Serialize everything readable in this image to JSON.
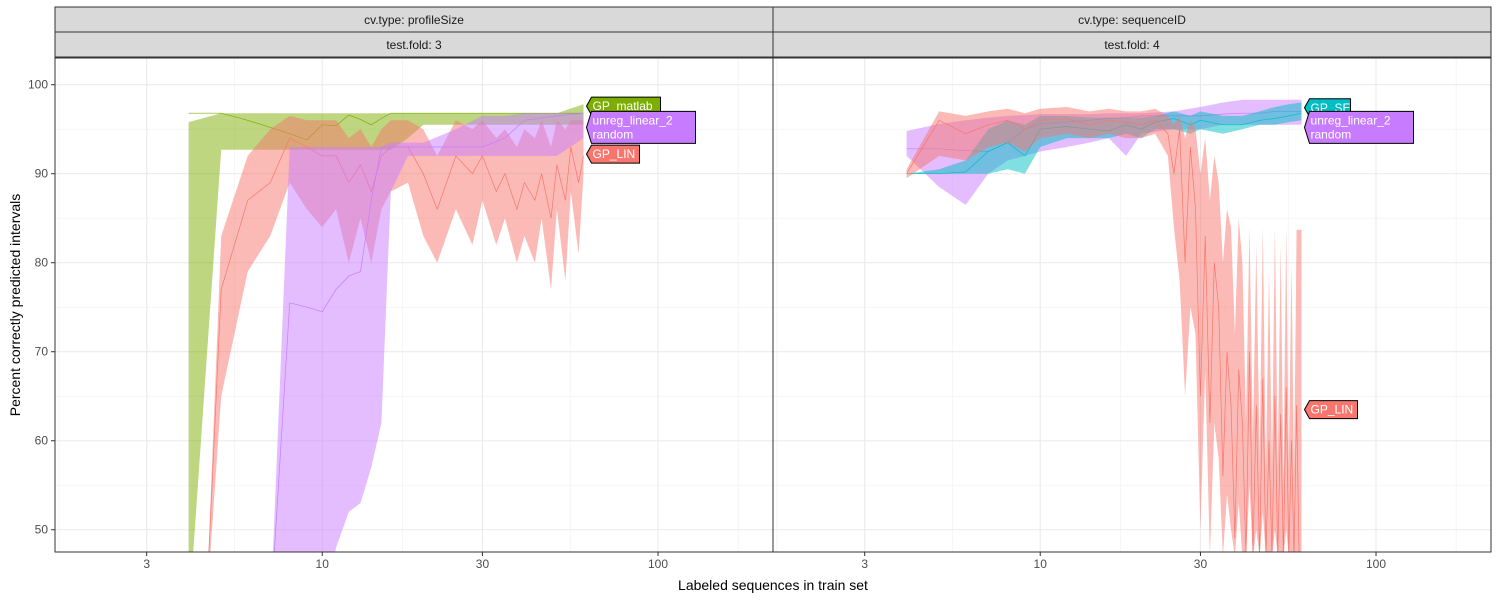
{
  "chart_data": {
    "type": "area",
    "xlabel": "Labeled sequences in train set",
    "ylabel": "Percent correctly predicted intervals",
    "x_scale": "log10",
    "xlim": [
      1.6,
      220
    ],
    "ylim": [
      47.5,
      103
    ],
    "x_ticks": [
      3,
      10,
      30,
      100
    ],
    "y_ticks": [
      50,
      60,
      70,
      80,
      90,
      100
    ],
    "grid": true,
    "legend": "none (direct labels)",
    "colors": {
      "GP_LIN": "#F8766D",
      "GP_matlab": "#7CAE00",
      "GP_SE": "#00BFC4",
      "unreg_linear_2": "#C77CFF",
      "random": "#C77CFF"
    },
    "panels": [
      {
        "strip_top": "cv.type: profileSize",
        "strip_bottom": "test.fold: 3",
        "series": [
          {
            "name": "GP_matlab",
            "color": "#7CAE00",
            "x": [
              4,
              5,
              6,
              7,
              8,
              9,
              10,
              11,
              12,
              13,
              14,
              15,
              16,
              18,
              20,
              25,
              30,
              35,
              40,
              50,
              60
            ],
            "mean": [
              96.8,
              96.8,
              96.0,
              95.2,
              94.5,
              93.8,
              95.5,
              95.4,
              96.6,
              96.1,
              95.5,
              96.2,
              96.8,
              96.8,
              96.8,
              96.8,
              96.8,
              96.8,
              96.8,
              96.8,
              96.8
            ],
            "lo": [
              40,
              92.7,
              92.7,
              92.7,
              92.7,
              92.7,
              92.7,
              92.7,
              92.7,
              92.7,
              92.7,
              92.7,
              92.7,
              94.0,
              95.5,
              95.5,
              95.5,
              95.5,
              95.5,
              95.5,
              95.5
            ],
            "hi": [
              95.8,
              96.8,
              96.8,
              96.8,
              96.8,
              96.8,
              96.8,
              96.8,
              96.8,
              96.8,
              96.8,
              96.8,
              96.8,
              96.8,
              96.8,
              96.8,
              96.8,
              96.8,
              96.8,
              96.8,
              97.8
            ]
          },
          {
            "name": "GP_LIN",
            "color": "#F8766D",
            "x": [
              4.5,
              5,
              6,
              7,
              8,
              9,
              10,
              11,
              12,
              13,
              14,
              15,
              16,
              18,
              20,
              22,
              25,
              28,
              30,
              33,
              35,
              38,
              40,
              43,
              45,
              48,
              50,
              53,
              55,
              58,
              60
            ],
            "mean": [
              40,
              77,
              87,
              89,
              94,
              93,
              92,
              92,
              89,
              91,
              88,
              92,
              93,
              93,
              90,
              86,
              92,
              90,
              92,
              88,
              90,
              86,
              89,
              87,
              90,
              85,
              91,
              87,
              93,
              89,
              92
            ],
            "lo": [
              40,
              65,
              79,
              83,
              89,
              86,
              84,
              86,
              80,
              85,
              80,
              86,
              88,
              89,
              83,
              80,
              86,
              82,
              87,
              82,
              85,
              80,
              83,
              80,
              85,
              77,
              86,
              78,
              88,
              81,
              90
            ],
            "hi": [
              40,
              83,
              92,
              95,
              96.5,
              96,
              96,
              96,
              94,
              95,
              93,
              95,
              96,
              96,
              95,
              92,
              96,
              95,
              96,
              94,
              95,
              93,
              95,
              94,
              96,
              93,
              96,
              95,
              96,
              96,
              96
            ]
          },
          {
            "name": "unreg_linear_2",
            "color": "#C77CFF",
            "x": [
              6,
              7,
              8,
              9,
              10,
              11,
              12,
              13,
              14,
              15,
              16,
              18,
              20,
              25,
              30,
              35,
              40,
              50,
              60
            ],
            "mean": [
              40,
              40,
              75.5,
              75,
              74.5,
              77,
              78.5,
              79,
              87,
              93,
              93,
              93,
              93,
              93,
              93,
              94,
              96,
              96.5,
              96.8
            ],
            "lo": [
              40,
              40,
              40,
              40,
              40,
              48,
              52,
              53,
              57,
              62,
              88,
              92,
              92,
              92,
              92,
              92,
              92,
              92,
              94
            ],
            "hi": [
              40,
              40,
              93,
              93,
              93,
              93,
              93,
              93,
              93,
              93,
              93.5,
              93.5,
              93.5,
              95,
              96.5,
              96.5,
              96.8,
              96.8,
              96.8
            ]
          }
        ],
        "direct_labels": [
          {
            "series": "GP_matlab",
            "lines": [
              "GP_matlab"
            ],
            "side": "right",
            "x": 60,
            "y": 97.6
          },
          {
            "series": "unreg_linear_2",
            "lines": [
              "unreg_linear_2",
              "random"
            ],
            "side": "right",
            "x": 60,
            "y": 95.2
          },
          {
            "series": "GP_LIN",
            "lines": [
              "GP_LIN"
            ],
            "side": "right",
            "x": 60,
            "y": 92.2
          }
        ]
      },
      {
        "strip_top": "cv.type: sequenceID",
        "strip_bottom": "test.fold: 4",
        "series": [
          {
            "name": "unreg_linear_2",
            "color": "#C77CFF",
            "x": [
              4,
              5,
              6,
              7,
              8,
              9,
              10,
              12,
              14,
              16,
              18,
              20,
              25,
              30,
              35,
              40,
              45,
              50,
              55,
              60
            ],
            "mean": [
              92.8,
              92.8,
              92.6,
              92.5,
              93.5,
              95.0,
              95.6,
              95.8,
              96.0,
              96.2,
              96.3,
              96.5,
              96.5,
              96.5,
              96.7,
              96.8,
              96.8,
              97.0,
              97.0,
              97.0
            ],
            "lo": [
              92.0,
              88.5,
              86.5,
              90.0,
              91.5,
              92.0,
              92.5,
              93.0,
              93.5,
              94.0,
              92.0,
              94.5,
              95.0,
              95.0,
              95.5,
              95.5,
              95.5,
              95.5,
              95.5,
              95.5
            ],
            "hi": [
              94.8,
              95.6,
              96.0,
              96.3,
              96.5,
              96.6,
              96.7,
              96.7,
              96.7,
              96.8,
              96.8,
              96.8,
              97.0,
              97.5,
              98.0,
              98.3,
              98.3,
              98.3,
              98.3,
              98.3
            ]
          },
          {
            "name": "GP_SE",
            "color": "#00BFC4",
            "x": [
              4,
              5,
              6,
              7,
              8,
              9,
              10,
              12,
              14,
              16,
              18,
              20,
              22,
              25,
              28,
              30,
              35,
              40,
              45,
              50,
              55,
              60
            ],
            "mean": [
              90.0,
              90.0,
              90.2,
              92.5,
              93.5,
              92.0,
              95.0,
              95.3,
              95.0,
              94.8,
              95.5,
              95.0,
              95.8,
              96.2,
              95.5,
              96.0,
              95.5,
              95.5,
              96.0,
              96.2,
              96.5,
              96.8
            ],
            "lo": [
              90.0,
              90.0,
              90.0,
              90.0,
              90.5,
              90.0,
              93.0,
              94.0,
              94.0,
              94.0,
              94.5,
              94.0,
              95.0,
              95.0,
              94.5,
              95.0,
              94.5,
              95.0,
              95.5,
              95.5,
              95.8,
              96.0
            ],
            "hi": [
              90.0,
              90.5,
              91.5,
              95.0,
              96.0,
              95.5,
              96.5,
              96.5,
              96.3,
              96.3,
              96.3,
              96.3,
              96.5,
              97.0,
              96.5,
              97.0,
              96.5,
              96.5,
              97.0,
              97.5,
              97.8,
              98.0
            ]
          },
          {
            "name": "GP_LIN",
            "color": "#F8766D",
            "x": [
              4,
              5,
              6,
              7,
              8,
              9,
              10,
              12,
              14,
              16,
              18,
              20,
              22,
              24,
              25,
              26,
              27,
              28,
              29,
              30,
              31,
              32,
              33,
              34,
              35,
              36,
              37,
              38,
              39,
              40,
              41,
              42,
              43,
              44,
              45,
              46,
              47,
              48,
              49,
              50,
              51,
              52,
              53,
              54,
              55,
              56,
              57,
              58,
              59,
              60
            ],
            "mean": [
              90.0,
              96.0,
              94.5,
              95.5,
              96.0,
              95.0,
              96.0,
              96.2,
              95.5,
              96.0,
              95.8,
              95.5,
              96.0,
              94.5,
              90.0,
              95.0,
              80.0,
              93.0,
              86.0,
              65.0,
              83.0,
              62.0,
              80.0,
              75.0,
              56.0,
              70.0,
              64.0,
              49.0,
              68.0,
              62.0,
              47.0,
              70.0,
              47.0,
              64.0,
              47.0,
              67.0,
              47.0,
              60.0,
              47.0,
              65.0,
              47.0,
              63.0,
              47.0,
              66.0,
              47.0,
              60.0,
              47.0,
              64.0,
              47.0,
              47.0
            ],
            "lo": [
              89.5,
              92.0,
              91.5,
              93.0,
              93.5,
              92.5,
              94.0,
              94.5,
              94.0,
              94.5,
              94.0,
              94.0,
              94.5,
              92.0,
              84.0,
              78.0,
              65.0,
              75.0,
              72.0,
              50.0,
              68.0,
              47.0,
              62.0,
              58.0,
              47.0,
              54.0,
              50.0,
              47.0,
              53.0,
              47.0,
              47.0,
              55.0,
              47.0,
              50.0,
              47.0,
              52.0,
              47.0,
              47.0,
              47.0,
              50.0,
              47.0,
              47.0,
              47.0,
              50.0,
              47.0,
              47.0,
              47.0,
              47.0,
              47.0,
              47.0
            ],
            "hi": [
              90.5,
              97.0,
              96.5,
              97.0,
              97.3,
              96.8,
              97.3,
              97.5,
              97.0,
              97.3,
              97.0,
              97.0,
              97.3,
              96.5,
              95.5,
              96.5,
              94.0,
              96.0,
              95.0,
              90.0,
              94.0,
              87.0,
              92.0,
              89.0,
              80.0,
              86.0,
              84.0,
              72.0,
              85.0,
              80.0,
              62.0,
              84.0,
              60.0,
              82.0,
              58.0,
              84.0,
              56.0,
              79.0,
              57.0,
              84.0,
              57.0,
              82.0,
              55.0,
              84.0,
              57.0,
              80.0,
              56.0,
              83.7,
              83.7,
              83.7
            ]
          }
        ],
        "direct_labels": [
          {
            "series": "GP_SE",
            "lines": [
              "GP_SE"
            ],
            "side": "right",
            "x": 60,
            "y": 97.4
          },
          {
            "series": "unreg_linear_2",
            "lines": [
              "unreg_linear_2",
              "random"
            ],
            "side": "right",
            "x": 60,
            "y": 95.2
          },
          {
            "series": "GP_LIN",
            "lines": [
              "GP_LIN"
            ],
            "side": "right",
            "x": 60,
            "y": 63.5
          }
        ]
      }
    ]
  }
}
